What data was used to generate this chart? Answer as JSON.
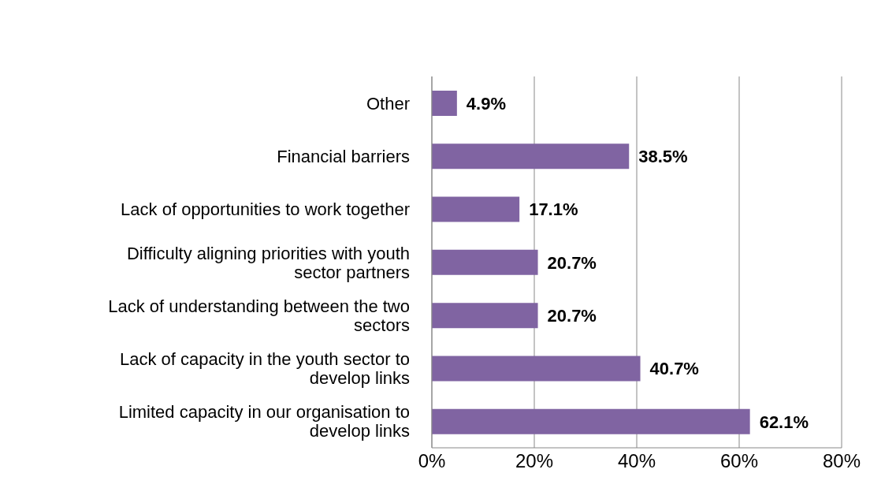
{
  "chart_data": {
    "type": "bar",
    "orientation": "horizontal",
    "categories": [
      "Other",
      "Financial barriers",
      "Lack of opportunities to work together",
      "Difficulty aligning priorities with youth sector partners",
      "Lack of understanding between the two sectors",
      "Lack of capacity in the youth sector to develop links",
      "Limited capacity in our organisation to develop links"
    ],
    "values": [
      4.9,
      38.5,
      17.1,
      20.7,
      20.7,
      40.7,
      62.1
    ],
    "value_labels": [
      "4.9%",
      "38.5%",
      "17.1%",
      "20.7%",
      "20.7%",
      "40.7%",
      "62.1%"
    ],
    "color": "#8064a2",
    "xlim": [
      0,
      80
    ],
    "xticks": [
      {
        "value": 0,
        "label": "0%"
      },
      {
        "value": 20,
        "label": "20%"
      },
      {
        "value": 40,
        "label": "40%"
      },
      {
        "value": 60,
        "label": "60%"
      },
      {
        "value": 80,
        "label": "80%"
      }
    ],
    "grid": "x",
    "legend": false
  }
}
